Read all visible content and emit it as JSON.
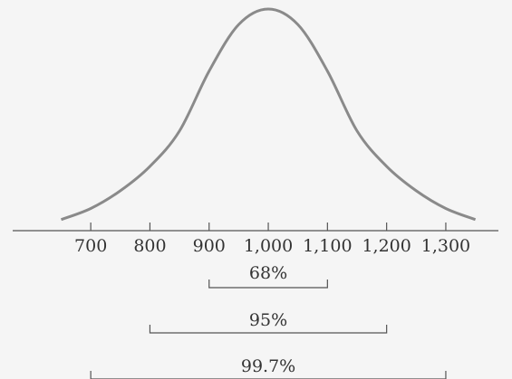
{
  "chart_data": {
    "type": "line",
    "x": [
      650,
      700,
      750,
      800,
      850,
      900,
      950,
      1000,
      1050,
      1100,
      1150,
      1200,
      1250,
      1300,
      1350
    ],
    "values": [
      0.05,
      0.1,
      0.18,
      0.29,
      0.45,
      0.72,
      0.93,
      1,
      0.93,
      0.72,
      0.45,
      0.29,
      0.18,
      0.1,
      0.05
    ],
    "color": "#8a8a8a",
    "xlim": [
      650,
      1350
    ],
    "ylim": [
      0,
      1
    ],
    "xticks": [
      700,
      800,
      900,
      {
        "value": 1000,
        "label": "1,000"
      },
      {
        "value": 1100,
        "label": "1,100"
      },
      {
        "value": 1200,
        "label": "1,200"
      },
      {
        "value": 1300,
        "label": "1,300"
      }
    ],
    "intervals": {
      "ranges": [
        [
          900,
          1100
        ],
        [
          800,
          1200
        ],
        [
          700,
          1300
        ]
      ],
      "values": [
        68,
        95,
        99.7
      ],
      "value_labels": [
        "68%",
        "95%",
        "99.7%"
      ]
    }
  }
}
